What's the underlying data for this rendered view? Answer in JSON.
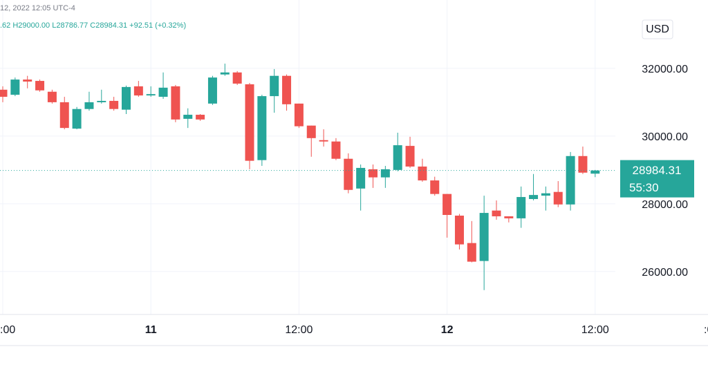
{
  "chart_data": {
    "type": "candlestick",
    "datetime": "12, 2022 12:05 UTC-4",
    "legend_text": ".62 H29000.00 L28786.77 C28984.31 +92.51 (+0.32%)",
    "currency": "USD",
    "countdown": "55:30",
    "categories": [
      ":00",
      null,
      null,
      null,
      null,
      null,
      null,
      null,
      null,
      null,
      null,
      null,
      "11",
      null,
      null,
      null,
      null,
      null,
      null,
      null,
      null,
      null,
      null,
      null,
      "12:00",
      null,
      null,
      null,
      null,
      null,
      null,
      null,
      null,
      null,
      null,
      null,
      "12",
      null,
      null,
      null,
      null,
      null,
      null,
      null,
      null,
      null,
      null,
      null,
      "12:00"
    ],
    "right_edge_label": ":0",
    "open": [
      31370,
      31220,
      31670,
      31630,
      31310,
      31000,
      30220,
      30800,
      31000,
      31040,
      30780,
      31470,
      31200,
      31160,
      31470,
      30510,
      30630,
      30960,
      31820,
      31880,
      31530,
      29290,
      31180,
      31780,
      30960,
      30310,
      29880,
      29840,
      29330,
      28450,
      29020,
      28780,
      29000,
      29710,
      29100,
      28690,
      28290,
      27650,
      26840,
      26310,
      27800,
      27630,
      27570,
      28140,
      28240,
      28350,
      27980,
      29410,
      28890
    ],
    "high": [
      31470,
      31730,
      31780,
      31670,
      31370,
      31160,
      30860,
      31310,
      31370,
      31160,
      31490,
      31630,
      31470,
      31880,
      31510,
      30820,
      30650,
      31780,
      32140,
      31920,
      31570,
      31220,
      31980,
      31820,
      30960,
      30310,
      30200,
      29940,
      29490,
      29160,
      29160,
      29120,
      30100,
      29980,
      29330,
      28800,
      28290,
      27700,
      27490,
      28240,
      28100,
      27630,
      28510,
      28880,
      28510,
      28670,
      29530,
      29690,
      29000
    ],
    "low": [
      31000,
      31180,
      31410,
      31310,
      30960,
      30200,
      30200,
      30750,
      30960,
      30750,
      30650,
      31160,
      31160,
      31100,
      30410,
      30240,
      30450,
      30920,
      31780,
      31510,
      29020,
      29120,
      30690,
      30750,
      30240,
      29390,
      29690,
      29290,
      28310,
      27800,
      28470,
      28470,
      28960,
      29060,
      28650,
      28240,
      27000,
      26650,
      26270,
      25450,
      27530,
      27450,
      27290,
      28100,
      27800,
      27900,
      27800,
      28880,
      28786.77
    ],
    "close": [
      31160,
      31670,
      31610,
      31350,
      31000,
      30240,
      30800,
      31000,
      31040,
      30800,
      31450,
      31200,
      31240,
      31430,
      30490,
      30630,
      30490,
      31730,
      31880,
      31550,
      29270,
      31180,
      31780,
      30940,
      30290,
      29940,
      29840,
      29330,
      28410,
      29060,
      28780,
      29020,
      29730,
      29100,
      28690,
      28290,
      27670,
      26800,
      26290,
      27730,
      27630,
      27570,
      28200,
      28260,
      28310,
      27980,
      29410,
      28920,
      28984.31
    ],
    "up_color": "#26a69a",
    "down_color": "#ef5350",
    "ylim": [
      24730,
      34020
    ],
    "yticks": [
      {
        "value": 26000,
        "label": "26000.00"
      },
      {
        "value": 28000,
        "label": "28000.00"
      },
      {
        "value": 30000,
        "label": "30000.00"
      },
      {
        "value": 32000,
        "label": "32000.00"
      }
    ],
    "grid": true
  }
}
